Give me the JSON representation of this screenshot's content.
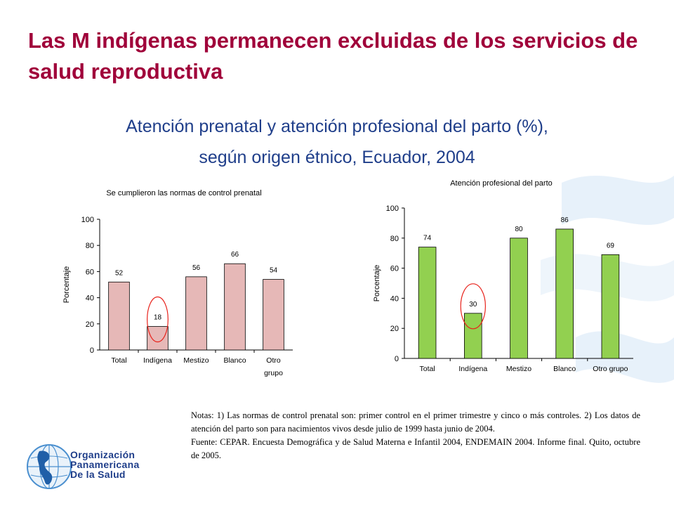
{
  "page": {
    "title": "Las M indígenas permanecen excluidas de los servicios de salud reproductiva",
    "subtitle_line1": "Atención prenatal y atención profesional del parto (%),",
    "subtitle_line2": "según origen étnico, Ecuador, 2004",
    "accent_color": "#a0003a",
    "subtitle_color": "#1f3e8a"
  },
  "chart_data": [
    {
      "type": "bar",
      "title": "Se cumplieron las normas de control prenatal",
      "ylabel": "Porcentaje",
      "xlabel": "",
      "categories": [
        "Total",
        "Indígena",
        "Mestizo",
        "Blanco",
        "Otro grupo"
      ],
      "values": [
        52,
        18,
        56,
        66,
        54
      ],
      "ylim": [
        0,
        100
      ],
      "yticks": [
        0,
        20,
        40,
        60,
        80,
        100
      ],
      "bar_color": "#e6b8b7",
      "grid": false,
      "legend": "none",
      "highlight_category": "Indígena",
      "highlight_color": "#e8231c"
    },
    {
      "type": "bar",
      "title": "Atención profesional del parto",
      "ylabel": "Porcentaje",
      "xlabel": "",
      "categories": [
        "Total",
        "Indígena",
        "Mestizo",
        "Blanco",
        "Otro grupo"
      ],
      "values": [
        74,
        30,
        80,
        86,
        69
      ],
      "ylim": [
        0,
        100
      ],
      "yticks": [
        0,
        20,
        40,
        60,
        80,
        100
      ],
      "bar_color": "#92d050",
      "grid": false,
      "legend": "none",
      "highlight_category": "Indígena",
      "highlight_color": "#e8231c"
    }
  ],
  "notes": {
    "line1": "Notas: 1) Las normas de control prenatal son: primer control en el primer trimestre y cinco o más controles. 2) Los datos de atención del parto son para nacimientos vivos desde julio de 1999 hasta junio de 2004.",
    "line2": "Fuente: CEPAR. Encuesta Demográfica y de Salud Materna e Infantil 2004, ENDEMAIN 2004. Informe final. Quito, octubre de 2005."
  },
  "logo": {
    "line1": "Organización",
    "line2": "Panamericana",
    "line3": "De la Salud"
  }
}
